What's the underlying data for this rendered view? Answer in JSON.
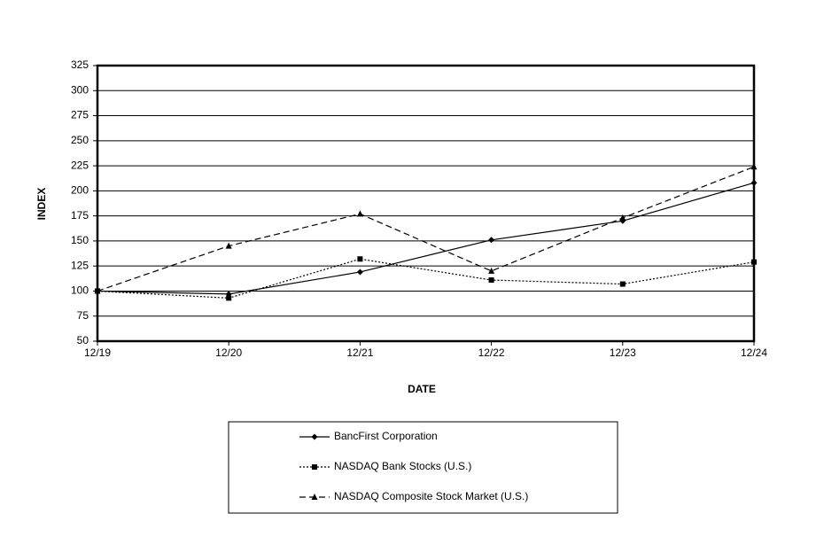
{
  "chart_data": {
    "type": "line",
    "xlabel": "DATE",
    "ylabel": "INDEX",
    "categories": [
      "12/19",
      "12/20",
      "12/21",
      "12/22",
      "12/23",
      "12/24"
    ],
    "series": [
      {
        "name": "BancFirst Corporation",
        "color": "#000000",
        "marker": "diamond",
        "dash": "solid",
        "values": [
          100,
          97,
          119,
          151,
          170,
          208
        ]
      },
      {
        "name": "NASDAQ Bank Stocks (U.S.)",
        "color": "#000000",
        "marker": "square",
        "dash": "dotted",
        "values": [
          100,
          93,
          132,
          111,
          107,
          129
        ]
      },
      {
        "name": "NASDAQ Composite Stock Market (U.S.)",
        "color": "#000000",
        "marker": "triangle",
        "dash": "dashed",
        "values": [
          100,
          145,
          177,
          120,
          173,
          224
        ]
      }
    ],
    "ylim": [
      50,
      325
    ],
    "yticks": [
      50,
      75,
      100,
      125,
      150,
      175,
      200,
      225,
      250,
      275,
      300,
      325
    ],
    "grid": true,
    "legend": "bottom"
  }
}
